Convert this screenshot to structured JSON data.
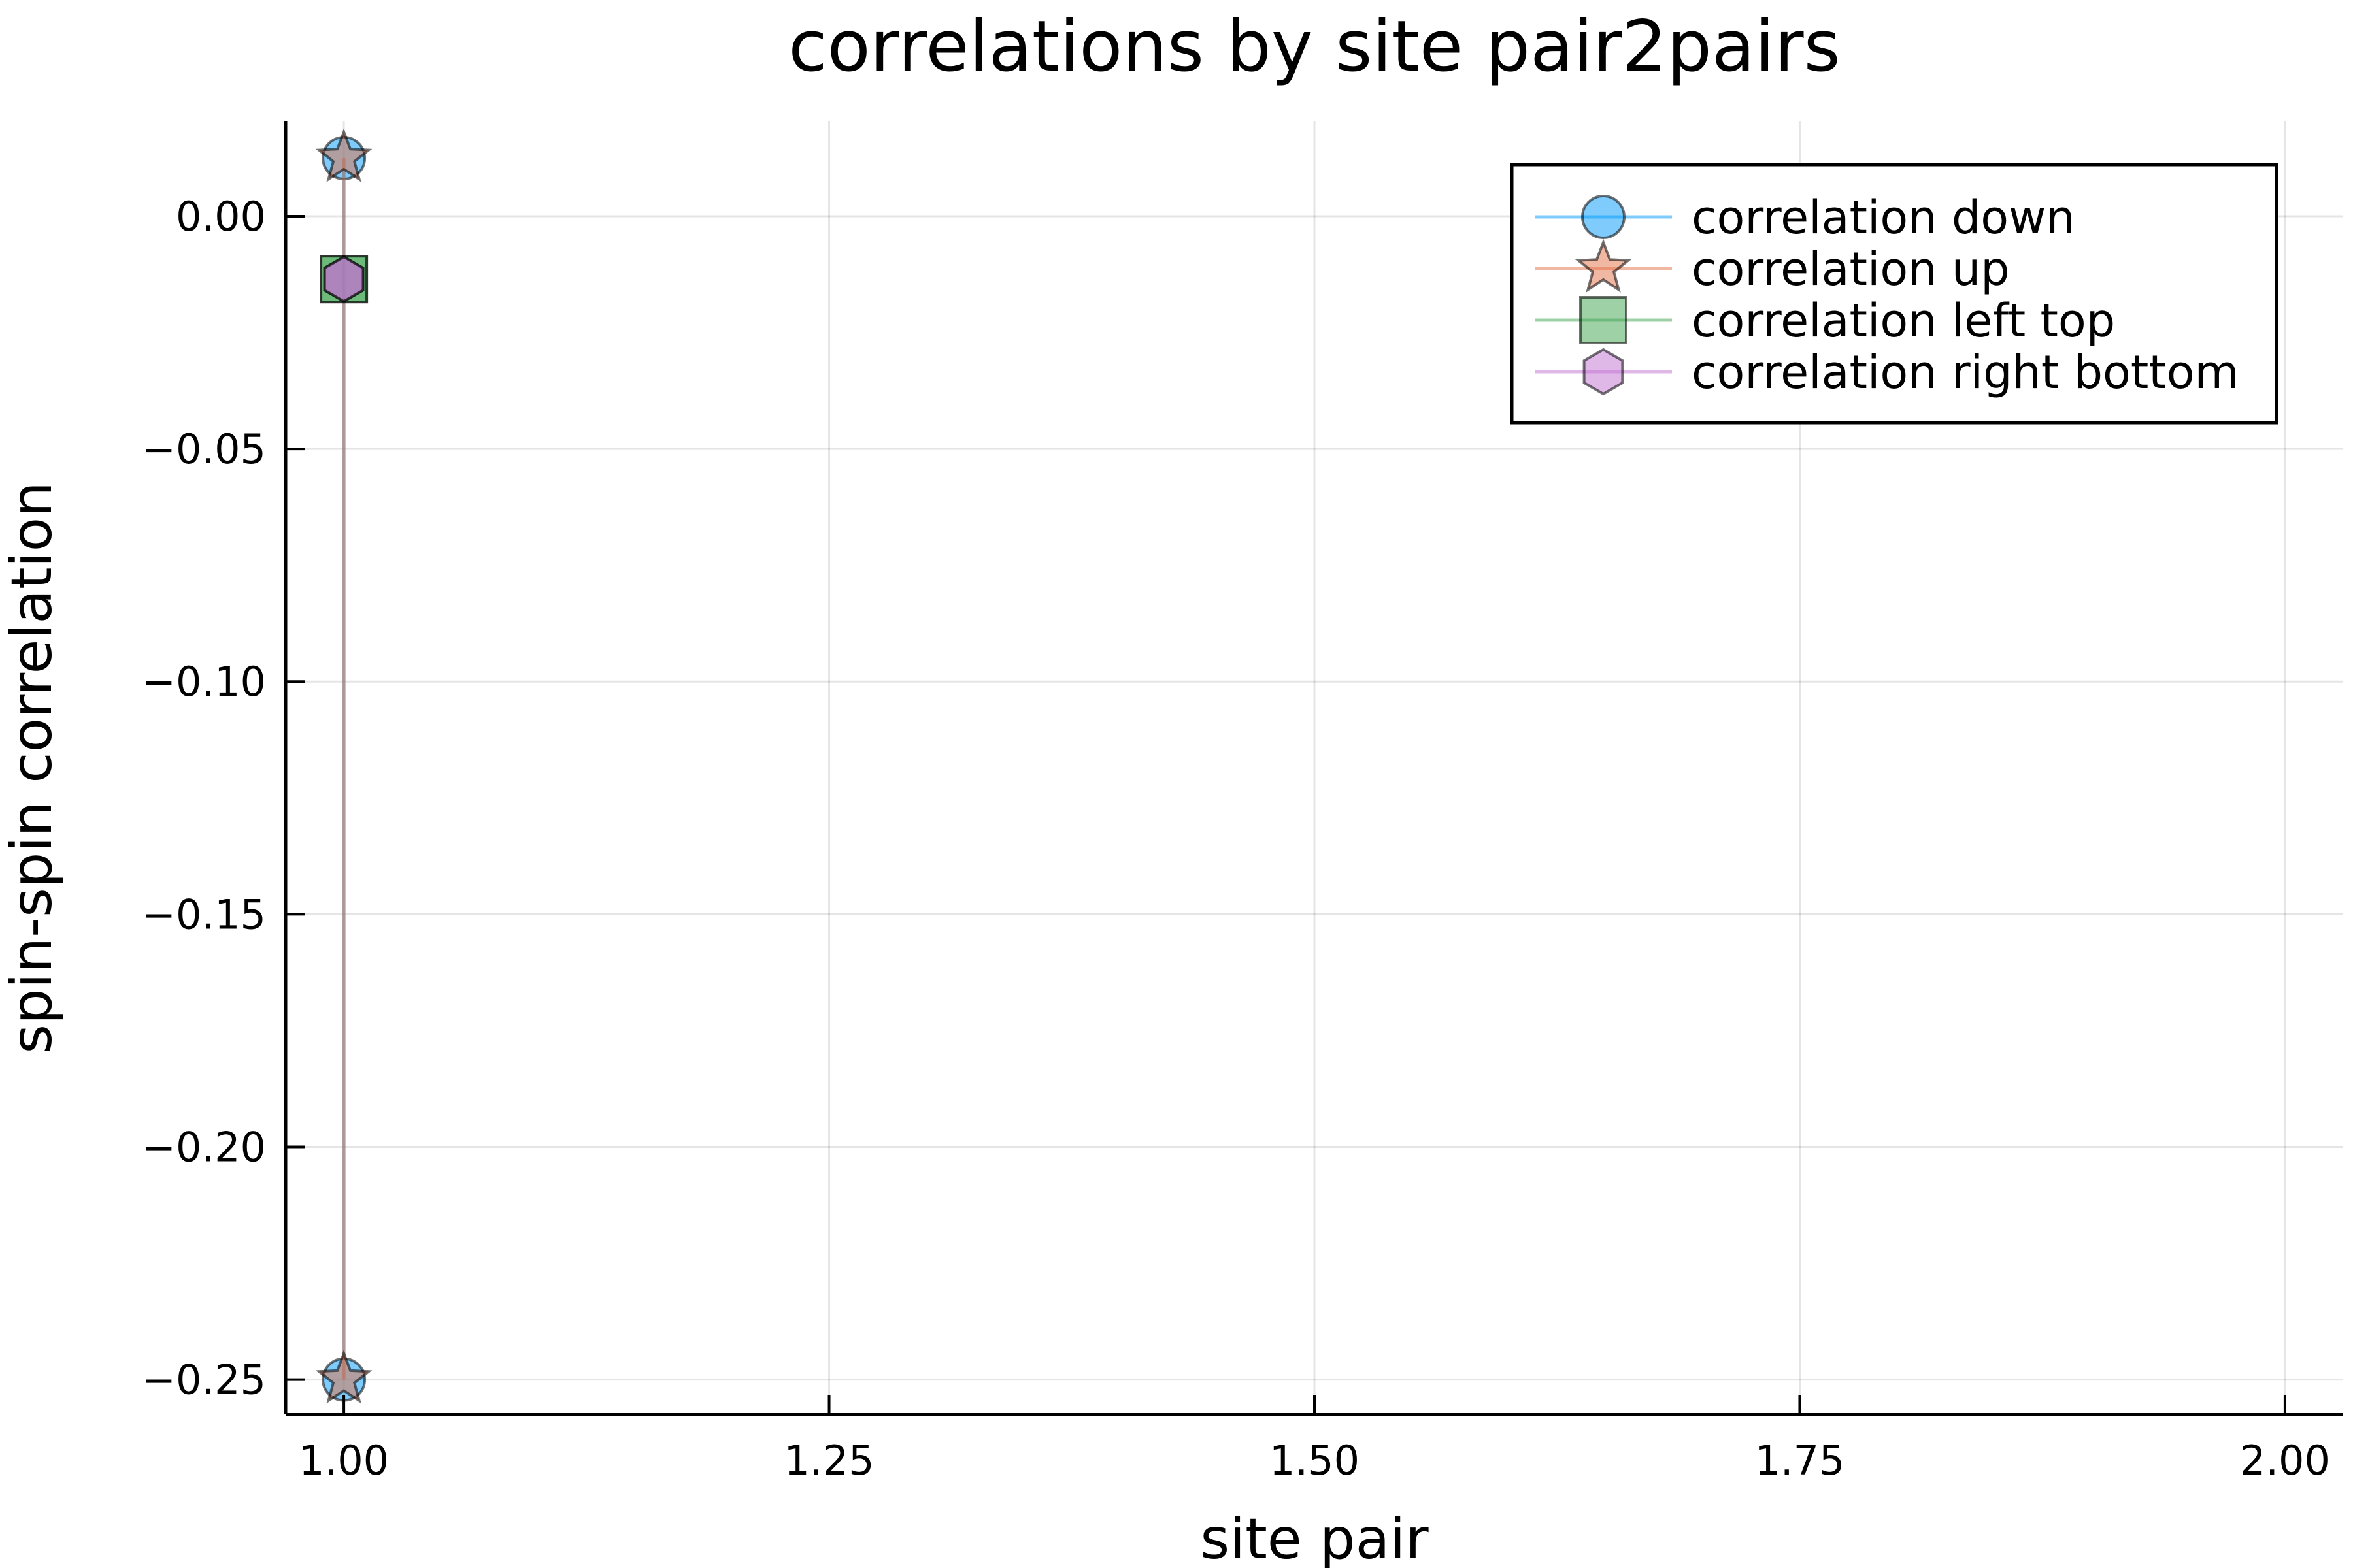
{
  "chart_data": {
    "type": "line",
    "title": "correlations by site pair2pairs",
    "xlabel": "site pair",
    "ylabel": "spin-spin correlation",
    "xlim": [
      0.97,
      2.03
    ],
    "ylim": [
      -0.2575,
      0.0205
    ],
    "xticks": [
      1.0,
      1.25,
      1.5,
      1.75,
      2.0
    ],
    "xtick_labels": [
      "1.00",
      "1.25",
      "1.50",
      "1.75",
      "2.00"
    ],
    "yticks": [
      0.0,
      -0.05,
      -0.1,
      -0.15,
      -0.2,
      -0.25
    ],
    "ytick_labels": [
      "0.00",
      "−0.05",
      "−0.10",
      "−0.15",
      "−0.20",
      "−0.25"
    ],
    "grid": true,
    "legend_position": "top-right",
    "series": [
      {
        "name": "correlation down",
        "marker": "circle",
        "color": "#009AFA",
        "points": [
          [
            1,
            0.0125
          ],
          [
            1,
            -0.25
          ]
        ]
      },
      {
        "name": "correlation up",
        "marker": "star",
        "color": "#E26F46",
        "points": [
          [
            1,
            0.0125
          ],
          [
            1,
            -0.25
          ]
        ]
      },
      {
        "name": "correlation left top",
        "marker": "square",
        "color": "#3DA44D",
        "points": [
          [
            1,
            -0.0135
          ],
          [
            1,
            -0.0135
          ]
        ]
      },
      {
        "name": "correlation right bottom",
        "marker": "hexagon",
        "color": "#C271D2",
        "points": [
          [
            1,
            -0.0135
          ],
          [
            1,
            -0.0135
          ]
        ]
      }
    ]
  }
}
